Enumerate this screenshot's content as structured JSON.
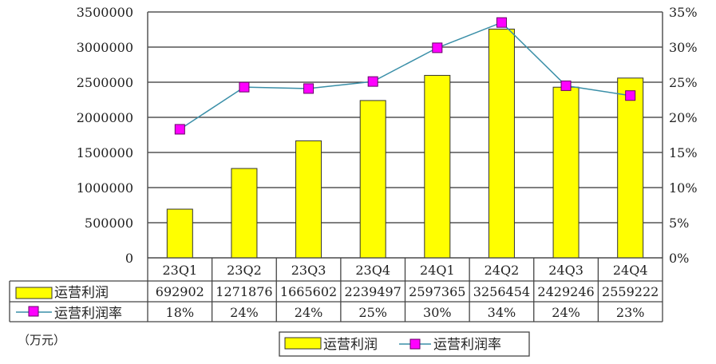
{
  "chart_data": {
    "type": "bar+line",
    "categories": [
      "23Q1",
      "23Q2",
      "23Q3",
      "23Q4",
      "24Q1",
      "24Q2",
      "24Q3",
      "24Q4"
    ],
    "series": [
      {
        "name": "运营利润",
        "type": "bar",
        "axis": "left",
        "color": "#ffff00",
        "values": [
          692902,
          1271876,
          1665602,
          2239497,
          2597365,
          3256454,
          2429246,
          2559222
        ],
        "labels": [
          "692902",
          "1271876",
          "1665602",
          "2239497",
          "2597365",
          "3256454",
          "2429246",
          "2559222"
        ]
      },
      {
        "name": "运营利润率",
        "type": "line",
        "axis": "right",
        "color": "#3a8fa8",
        "marker_color": "#ff00ff",
        "values": [
          18.3,
          24.3,
          24.1,
          25.1,
          29.9,
          33.5,
          24.5,
          23.1
        ],
        "labels": [
          "18%",
          "24%",
          "24%",
          "25%",
          "30%",
          "34%",
          "24%",
          "23%"
        ]
      }
    ],
    "left_axis": {
      "ylim": [
        0,
        3500000
      ],
      "ticks": [
        "0",
        "500000",
        "1000000",
        "1500000",
        "2000000",
        "2500000",
        "3000000",
        "3500000"
      ]
    },
    "right_axis": {
      "ylim": [
        0,
        35
      ],
      "ticks": [
        "0%",
        "5%",
        "10%",
        "15%",
        "20%",
        "25%",
        "30%",
        "35%"
      ]
    },
    "unit_note": "（万元）",
    "grid": true,
    "legend_placement": "bottom",
    "data_table": true
  }
}
